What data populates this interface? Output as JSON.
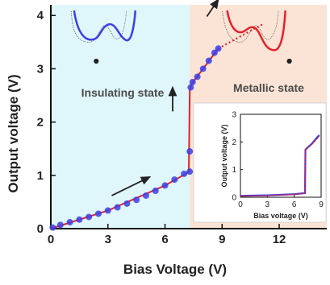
{
  "colors": {
    "insulating_region": "#dff6fb",
    "metallic_region": "#fbe4d6",
    "markers": "#3b3fe6",
    "fit_line": "#e4202a",
    "axis": "#111111"
  },
  "chart_data": {
    "type": "scatter",
    "xlabel": "Bias Voltage (V)",
    "ylabel": "Output voltage (V)",
    "xlim": [
      0,
      14.5
    ],
    "ylim": [
      0,
      4.2
    ],
    "xticks": [
      "0",
      "3",
      "6",
      "9",
      "12"
    ],
    "yticks": [
      "0",
      "1",
      "2",
      "3",
      "4"
    ],
    "regions": [
      {
        "label": "Insulating state",
        "x_range": [
          0,
          7.3
        ]
      },
      {
        "label": "Metallic state",
        "x_range": [
          7.3,
          14.5
        ]
      }
    ],
    "points": [
      {
        "x": 0.1,
        "y": 0.02
      },
      {
        "x": 0.5,
        "y": 0.07
      },
      {
        "x": 1.0,
        "y": 0.12
      },
      {
        "x": 1.5,
        "y": 0.17
      },
      {
        "x": 2.0,
        "y": 0.22
      },
      {
        "x": 2.5,
        "y": 0.28
      },
      {
        "x": 3.0,
        "y": 0.34
      },
      {
        "x": 3.5,
        "y": 0.4
      },
      {
        "x": 4.0,
        "y": 0.47
      },
      {
        "x": 4.5,
        "y": 0.54
      },
      {
        "x": 5.0,
        "y": 0.62
      },
      {
        "x": 5.5,
        "y": 0.71
      },
      {
        "x": 6.0,
        "y": 0.81
      },
      {
        "x": 6.5,
        "y": 0.92
      },
      {
        "x": 7.0,
        "y": 1.03
      },
      {
        "x": 7.3,
        "y": 1.07
      },
      {
        "x": 7.3,
        "y": 1.45
      },
      {
        "x": 7.35,
        "y": 2.65
      },
      {
        "x": 7.45,
        "y": 2.75
      },
      {
        "x": 7.7,
        "y": 2.85
      },
      {
        "x": 8.0,
        "y": 3.0
      },
      {
        "x": 8.3,
        "y": 3.15
      },
      {
        "x": 8.6,
        "y": 3.3
      },
      {
        "x": 8.8,
        "y": 3.38
      }
    ],
    "fit_line": [
      {
        "x": 0.0,
        "y": 0.0
      },
      {
        "x": 3.0,
        "y": 0.34
      },
      {
        "x": 6.0,
        "y": 0.81
      },
      {
        "x": 7.25,
        "y": 1.06
      },
      {
        "x": 7.3,
        "y": 2.6
      },
      {
        "x": 7.4,
        "y": 2.72
      },
      {
        "x": 8.0,
        "y": 3.0
      },
      {
        "x": 8.8,
        "y": 3.38
      }
    ],
    "fit_extension": [
      {
        "x": 8.8,
        "y": 3.38
      },
      {
        "x": 11.2,
        "y": 3.85
      }
    ],
    "arrows": [
      {
        "from": [
          3.2,
          0.62
        ],
        "to": [
          5.2,
          0.97
        ]
      },
      {
        "from": [
          6.4,
          2.2
        ],
        "to": [
          6.4,
          2.65
        ]
      },
      {
        "from": [
          8.2,
          3.98
        ],
        "to": [
          8.8,
          4.3
        ]
      }
    ],
    "inset": {
      "type": "line",
      "xlabel": "Bias voltage (V)",
      "ylabel": "Output voltage (V)",
      "xlim": [
        0,
        9
      ],
      "ylim": [
        0,
        3
      ],
      "xticks": [
        "0",
        "3",
        "6",
        "9"
      ],
      "yticks": [
        "0",
        "1",
        "2",
        "3"
      ],
      "series": [
        {
          "color": "#3b3fe6",
          "points": [
            [
              0,
              0.05
            ],
            [
              3,
              0.07
            ],
            [
              6,
              0.11
            ],
            [
              7.2,
              0.15
            ],
            [
              7.25,
              1.72
            ],
            [
              7.5,
              1.8
            ],
            [
              8,
              1.95
            ],
            [
              8.5,
              2.15
            ],
            [
              8.8,
              2.25
            ]
          ]
        },
        {
          "color": "#e4202a",
          "points": [
            [
              0,
              0.04
            ],
            [
              3,
              0.06
            ],
            [
              6,
              0.1
            ],
            [
              7.2,
              0.14
            ],
            [
              7.25,
              1.72
            ],
            [
              7.5,
              1.78
            ],
            [
              8,
              1.92
            ],
            [
              8.5,
              2.1
            ],
            [
              8.8,
              2.2
            ]
          ]
        }
      ]
    }
  }
}
